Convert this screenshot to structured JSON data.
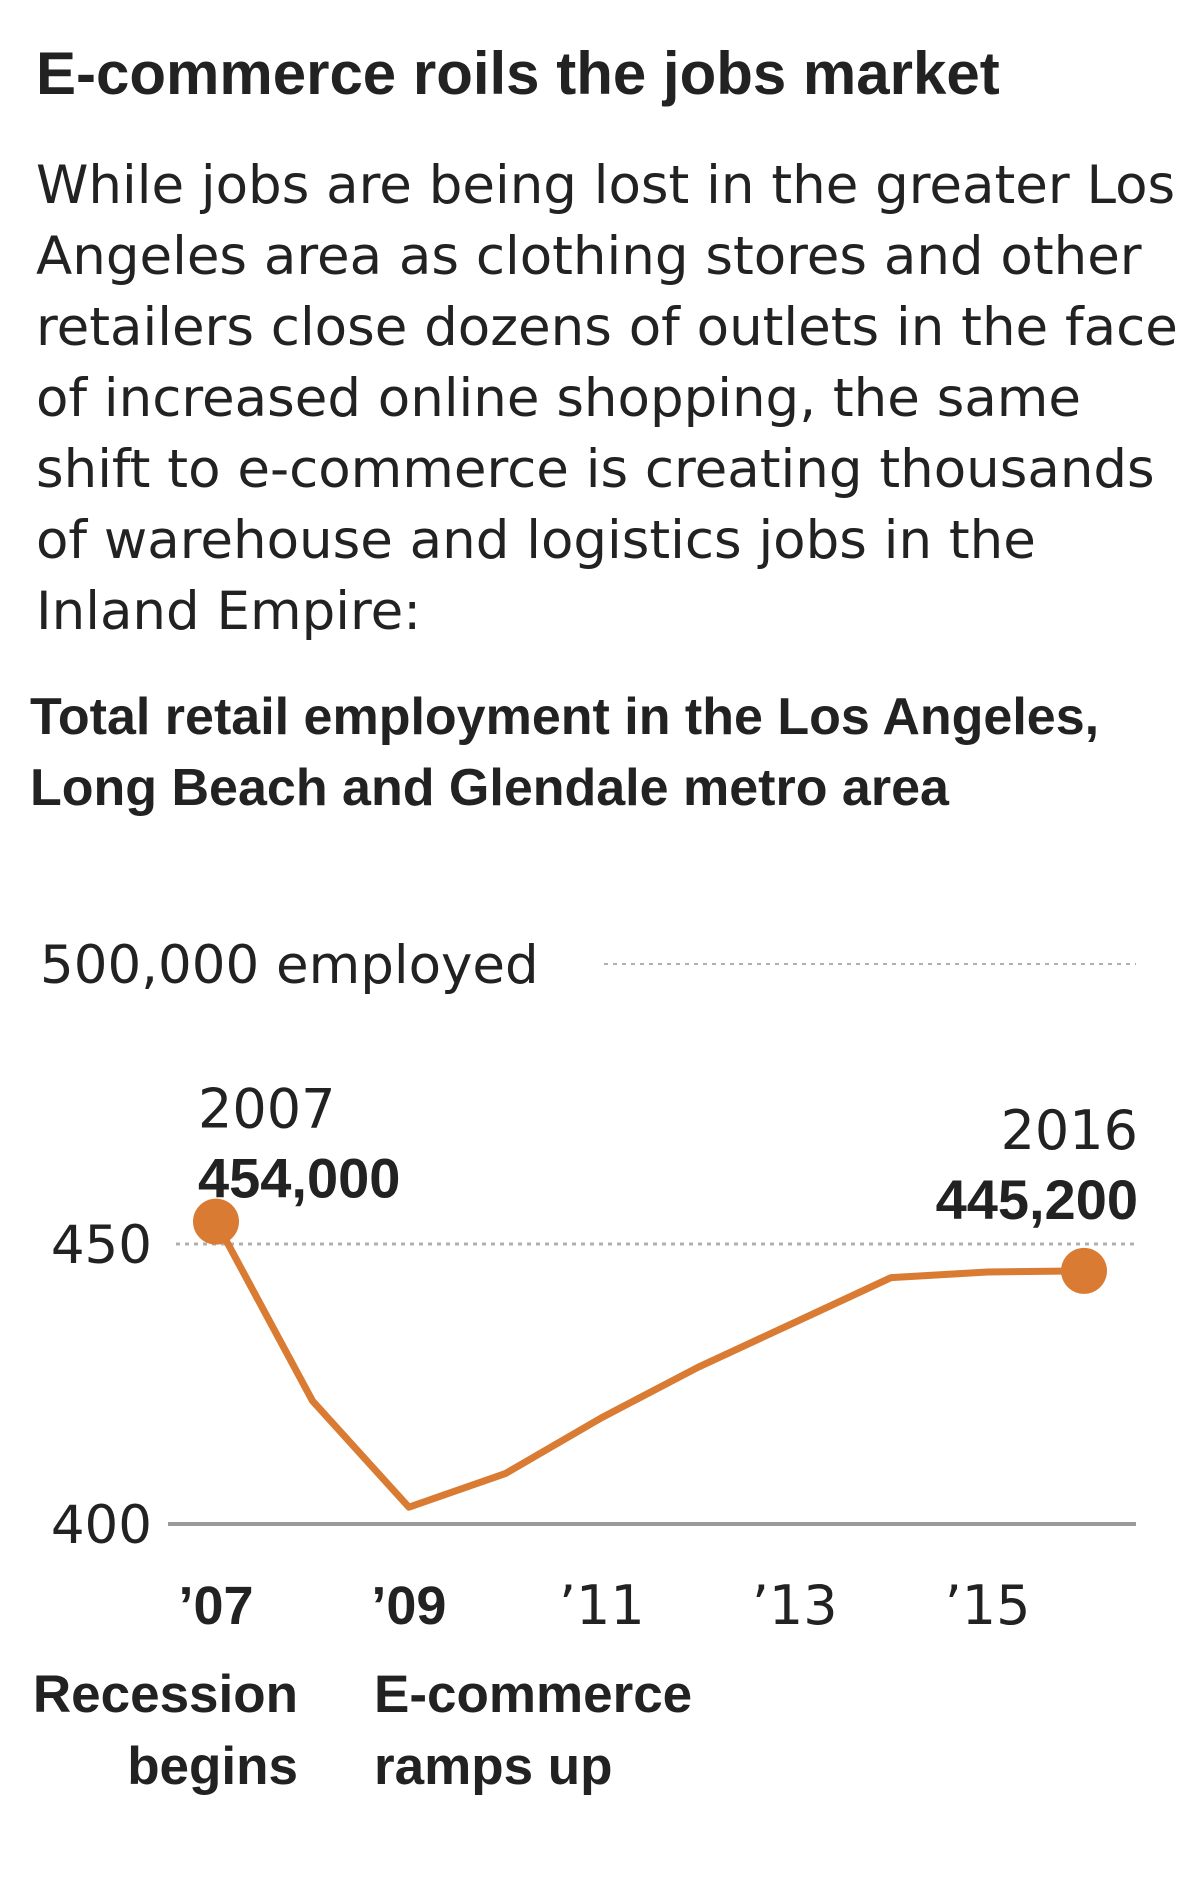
{
  "headline": "E-commerce roils the jobs market",
  "dek": "While jobs are being lost in the greater Los Angeles area as clothing stores and other retailers close dozens of outlets in the face of increased online shopping, the same shift to e-commerce is creating thousands of warehouse and logistics jobs in the Inland Empire:",
  "colors": {
    "line": "#d97b32",
    "text": "#222222",
    "axis": "#9a9a9a",
    "grid": "#b0b0b0"
  },
  "chart_data": {
    "type": "line",
    "title": "Total retail employment in the Los Angeles, Long Beach and Glendale metro area",
    "ylabel": "",
    "xlabel": "",
    "ylim": [
      400000,
      500000
    ],
    "y_ticks": [
      {
        "value": 500000,
        "label": "500,000 employed"
      },
      {
        "value": 450000,
        "label": "450"
      },
      {
        "value": 400000,
        "label": "400"
      }
    ],
    "x_ticks": [
      {
        "value": 2007,
        "label": "’07",
        "bold": true
      },
      {
        "value": 2009,
        "label": "’09",
        "bold": true
      },
      {
        "value": 2011,
        "label": "’11",
        "bold": false
      },
      {
        "value": 2013,
        "label": "’13",
        "bold": false
      },
      {
        "value": 2015,
        "label": "’15",
        "bold": false
      }
    ],
    "series": [
      {
        "x": [
          2007,
          2008,
          2009,
          2010,
          2011,
          2012,
          2013,
          2014,
          2015,
          2016
        ],
        "y": [
          454000,
          422000,
          403000,
          409000,
          419000,
          428000,
          436000,
          444000,
          445000,
          445200
        ]
      }
    ],
    "endpoint_labels": [
      {
        "x": 2007,
        "y": 454000,
        "year": "2007",
        "value": "454,000",
        "align": "start"
      },
      {
        "x": 2016,
        "y": 445200,
        "year": "2016",
        "value": "445,200",
        "align": "end"
      }
    ],
    "annotations": [
      {
        "x": 2007,
        "lines": [
          "Recession",
          "begins"
        ],
        "align": "end"
      },
      {
        "x": 2009,
        "lines": [
          "E-commerce",
          "ramps up"
        ],
        "align": "start"
      }
    ]
  }
}
